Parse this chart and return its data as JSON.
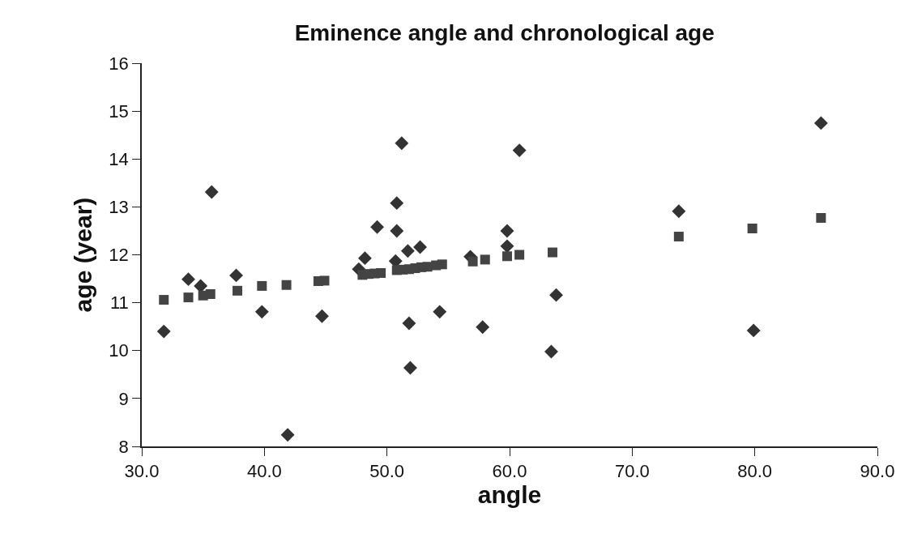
{
  "chart_data": {
    "type": "scatter",
    "title": "Eminence angle and chronological age",
    "xlabel": "angle",
    "ylabel": "age (year)",
    "xlim": [
      30,
      90
    ],
    "xticks": [
      {
        "value": 30,
        "label": "30.0"
      },
      {
        "value": 40,
        "label": "40.0"
      },
      {
        "value": 50,
        "label": "50.0"
      },
      {
        "value": 60,
        "label": "60.0"
      },
      {
        "value": 70,
        "label": "70.0"
      },
      {
        "value": 80,
        "label": "80.0"
      },
      {
        "value": 90,
        "label": "90.0"
      }
    ],
    "ylim": [
      8,
      16
    ],
    "yticks": [
      8,
      9,
      10,
      11,
      12,
      13,
      14,
      15,
      16
    ],
    "series": [
      {
        "color": "#333333",
        "marker": "diamond",
        "x": [
          31.8,
          33.8,
          34.8,
          35.7,
          37.7,
          39.8,
          41.9,
          44.7,
          47.7,
          48.2,
          49.2,
          50.7,
          50.8,
          50.8,
          51.2,
          51.7,
          51.8,
          51.9,
          52.7,
          53.8,
          54.3,
          56.8,
          57.8,
          59.8,
          59.8,
          60.8,
          63.4,
          63.8,
          73.8,
          79.9,
          85.4
        ],
        "values": [
          10.4,
          11.49,
          11.35,
          13.31,
          11.57,
          10.81,
          8.24,
          10.72,
          11.7,
          11.93,
          12.58,
          11.87,
          13.08,
          12.5,
          14.33,
          12.08,
          10.57,
          9.64,
          12.16,
          null,
          10.81,
          11.96,
          10.49,
          12.5,
          12.18,
          14.18,
          9.98,
          11.16,
          12.91,
          10.42,
          14.75
        ]
      },
      {
        "color": "#444444",
        "marker": "square",
        "x": [
          31.8,
          33.8,
          35.0,
          35.6,
          37.8,
          39.8,
          41.8,
          44.4,
          44.9,
          48.0,
          48.5,
          49.0,
          49.5,
          50.8,
          51.3,
          51.8,
          52.3,
          52.8,
          53.3,
          54.0,
          54.5,
          57.0,
          58.0,
          59.8,
          60.8,
          63.5,
          73.8,
          79.8,
          85.4
        ],
        "values": [
          11.06,
          11.11,
          11.15,
          11.18,
          11.25,
          11.35,
          11.37,
          11.45,
          11.46,
          11.58,
          11.6,
          11.61,
          11.62,
          11.68,
          11.69,
          11.7,
          11.72,
          11.74,
          11.75,
          11.78,
          11.8,
          11.86,
          11.9,
          11.97,
          12.0,
          12.05,
          12.38,
          12.55,
          12.77
        ]
      }
    ]
  }
}
